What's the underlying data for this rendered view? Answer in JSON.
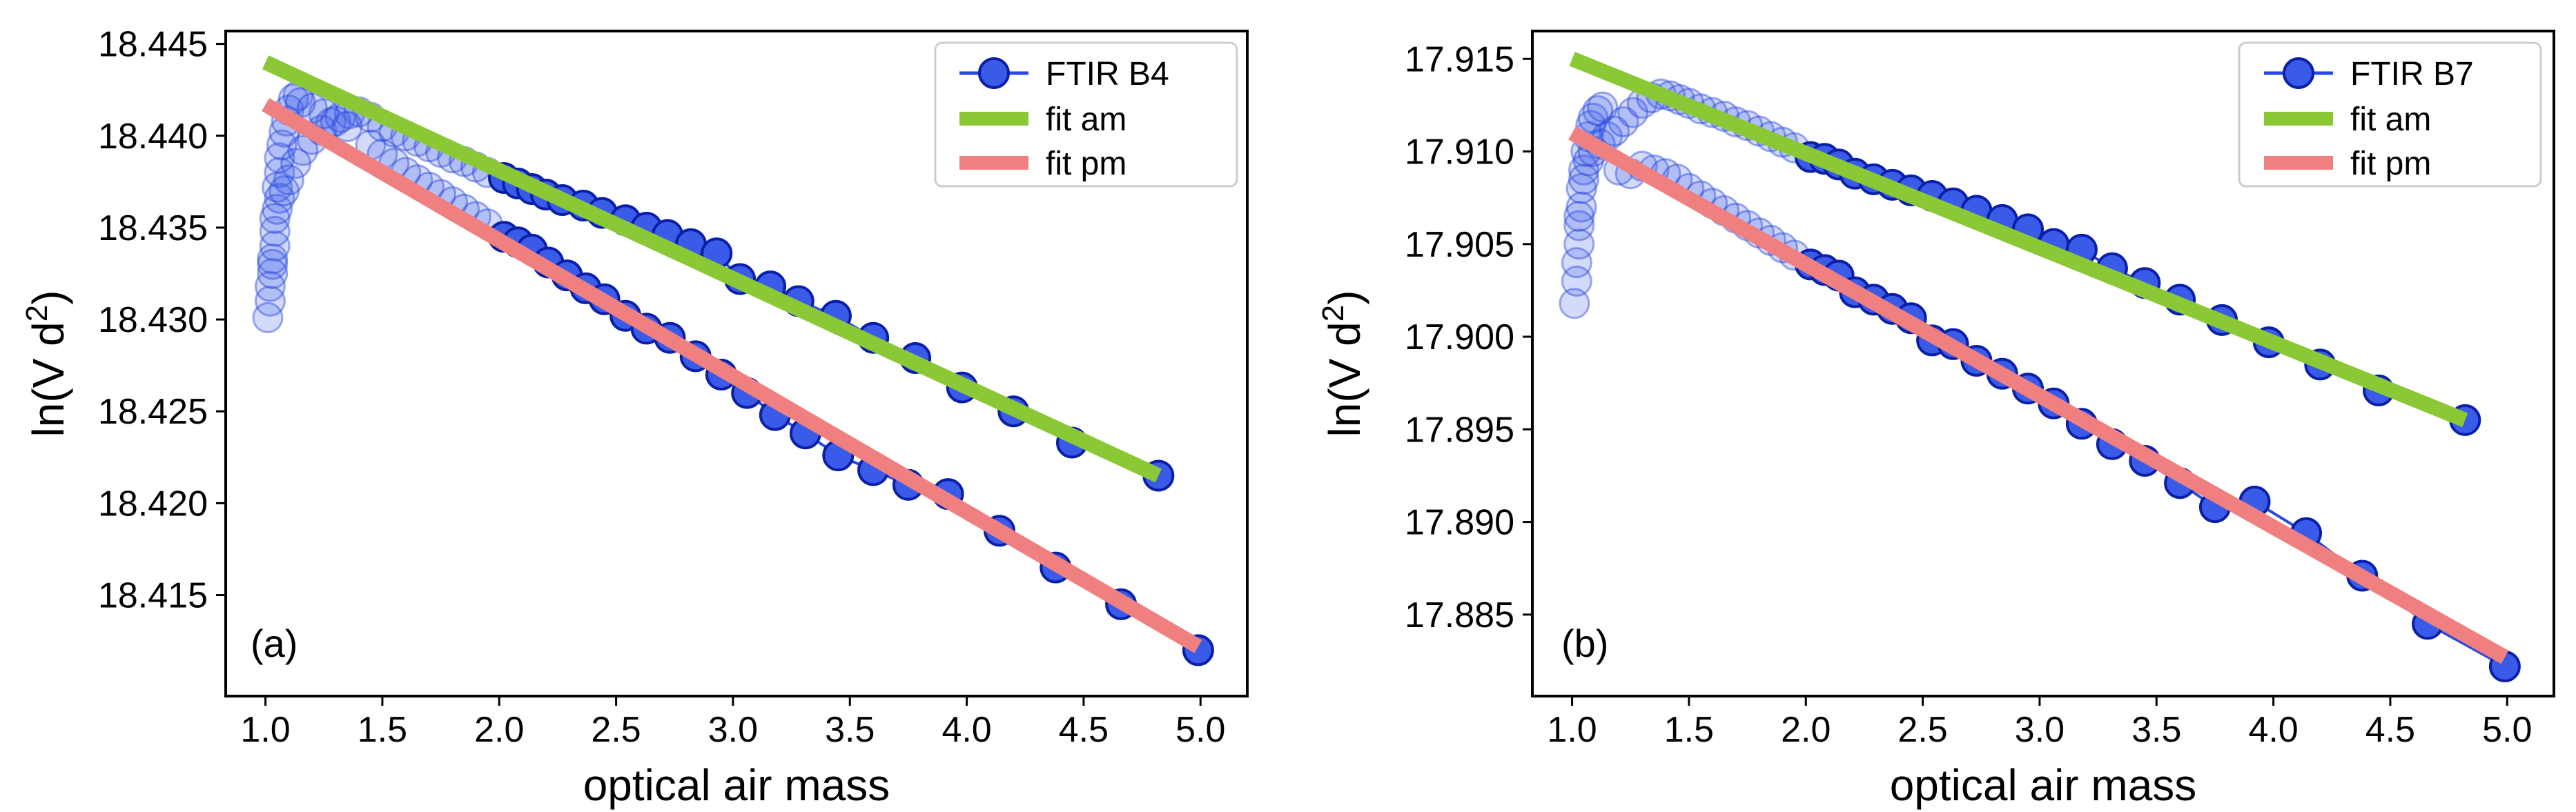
{
  "chart_data": [
    {
      "type": "scatter",
      "panel_label": "(a)",
      "xlabel": "optical air mass",
      "ylabel_main": "ln(V d",
      "ylabel_sup": "2",
      "ylabel_end": ")",
      "xlim": [
        0.83,
        5.2
      ],
      "ylim": [
        18.4095,
        18.4457
      ],
      "x_ticks": [
        1.0,
        1.5,
        2.0,
        2.5,
        3.0,
        3.5,
        4.0,
        4.5,
        5.0
      ],
      "x_tick_labels": [
        "1.0",
        "1.5",
        "2.0",
        "2.5",
        "3.0",
        "3.5",
        "4.0",
        "4.5",
        "5.0"
      ],
      "y_ticks": [
        18.415,
        18.42,
        18.425,
        18.43,
        18.435,
        18.44,
        18.445
      ],
      "y_tick_labels": [
        "18.415",
        "18.420",
        "18.425",
        "18.430",
        "18.435",
        "18.440",
        "18.445"
      ],
      "legend_position": "top-right",
      "series": [
        {
          "name": "FTIR B4",
          "kind": "data",
          "color": "#2848e0",
          "edge": "#0a1fa8",
          "low_airmass_points": [
            [
              1.01,
              18.4301
            ],
            [
              1.02,
              18.431
            ],
            [
              1.02,
              18.4318
            ],
            [
              1.03,
              18.4325
            ],
            [
              1.03,
              18.4333
            ],
            [
              1.04,
              18.434
            ],
            [
              1.04,
              18.4348
            ],
            [
              1.05,
              18.436
            ],
            [
              1.05,
              18.4372
            ],
            [
              1.06,
              18.438
            ],
            [
              1.06,
              18.4388
            ],
            [
              1.07,
              18.4395
            ],
            [
              1.08,
              18.4402
            ],
            [
              1.09,
              18.4408
            ],
            [
              1.1,
              18.4414
            ],
            [
              1.12,
              18.442
            ],
            [
              1.14,
              18.4422
            ],
            [
              1.03,
              18.433
            ],
            [
              1.04,
              18.4355
            ],
            [
              1.06,
              18.4366
            ],
            [
              1.08,
              18.437
            ],
            [
              1.1,
              18.4376
            ],
            [
              1.13,
              18.4385
            ],
            [
              1.16,
              18.4392
            ],
            [
              1.2,
              18.4398
            ],
            [
              1.24,
              18.4403
            ],
            [
              1.28,
              18.4407
            ],
            [
              1.32,
              18.441
            ],
            [
              1.36,
              18.4412
            ],
            [
              1.4,
              18.4413
            ],
            [
              1.15,
              18.4418
            ],
            [
              1.2,
              18.4415
            ],
            [
              1.25,
              18.4412
            ],
            [
              1.3,
              18.4408
            ],
            [
              1.35,
              18.4405
            ],
            [
              1.45,
              18.441
            ],
            [
              1.5,
              18.4405
            ],
            [
              1.55,
              18.4402
            ],
            [
              1.6,
              18.44
            ],
            [
              1.65,
              18.4397
            ],
            [
              1.7,
              18.4394
            ],
            [
              1.75,
              18.4391
            ],
            [
              1.8,
              18.4388
            ],
            [
              1.85,
              18.4386
            ],
            [
              1.9,
              18.4383
            ],
            [
              1.95,
              18.438
            ],
            [
              1.45,
              18.4395
            ],
            [
              1.5,
              18.439
            ],
            [
              1.55,
              18.4385
            ],
            [
              1.6,
              18.438
            ],
            [
              1.65,
              18.4376
            ],
            [
              1.7,
              18.4372
            ],
            [
              1.75,
              18.4368
            ],
            [
              1.8,
              18.4364
            ],
            [
              1.85,
              18.436
            ],
            [
              1.9,
              18.4356
            ],
            [
              1.95,
              18.4352
            ]
          ],
          "am_points": [
            [
              2.02,
              18.4377
            ],
            [
              2.08,
              18.4374
            ],
            [
              2.14,
              18.4371
            ],
            [
              2.2,
              18.4368
            ],
            [
              2.27,
              18.4365
            ],
            [
              2.36,
              18.4362
            ],
            [
              2.44,
              18.4358
            ],
            [
              2.54,
              18.4354
            ],
            [
              2.63,
              18.435
            ],
            [
              2.72,
              18.4346
            ],
            [
              2.82,
              18.4341
            ],
            [
              2.93,
              18.4336
            ],
            [
              3.03,
              18.4322
            ],
            [
              3.16,
              18.4318
            ],
            [
              3.28,
              18.431
            ],
            [
              3.44,
              18.4302
            ],
            [
              3.6,
              18.429
            ],
            [
              3.78,
              18.4279
            ],
            [
              3.98,
              18.4263
            ],
            [
              4.2,
              18.425
            ],
            [
              4.45,
              18.4233
            ],
            [
              4.82,
              18.4215
            ]
          ],
          "pm_points": [
            [
              2.02,
              18.4345
            ],
            [
              2.08,
              18.4342
            ],
            [
              2.14,
              18.4338
            ],
            [
              2.21,
              18.4331
            ],
            [
              2.29,
              18.4324
            ],
            [
              2.37,
              18.4317
            ],
            [
              2.45,
              18.4311
            ],
            [
              2.54,
              18.4302
            ],
            [
              2.63,
              18.4295
            ],
            [
              2.73,
              18.429
            ],
            [
              2.84,
              18.428
            ],
            [
              2.95,
              18.427
            ],
            [
              3.06,
              18.426
            ],
            [
              3.18,
              18.4248
            ],
            [
              3.31,
              18.4238
            ],
            [
              3.45,
              18.4226
            ],
            [
              3.6,
              18.4218
            ],
            [
              3.75,
              18.421
            ],
            [
              3.92,
              18.4205
            ],
            [
              4.14,
              18.4185
            ],
            [
              4.38,
              18.4165
            ],
            [
              4.66,
              18.4145
            ],
            [
              4.99,
              18.412
            ]
          ]
        },
        {
          "name": "fit am",
          "kind": "fit",
          "color": "#8ac935",
          "x": [
            1.0,
            4.82
          ],
          "y": [
            18.444,
            18.4215
          ]
        },
        {
          "name": "fit pm",
          "kind": "fit",
          "color": "#f08080",
          "x": [
            1.0,
            4.99
          ],
          "y": [
            18.4417,
            18.4122
          ]
        }
      ]
    },
    {
      "type": "scatter",
      "panel_label": "(b)",
      "xlabel": "optical air mass",
      "ylabel_main": "ln(V d",
      "ylabel_sup": "2",
      "ylabel_end": ")",
      "xlim": [
        0.83,
        5.2
      ],
      "ylim": [
        17.8806,
        17.9165
      ],
      "x_ticks": [
        1.0,
        1.5,
        2.0,
        2.5,
        3.0,
        3.5,
        4.0,
        4.5,
        5.0
      ],
      "x_tick_labels": [
        "1.0",
        "1.5",
        "2.0",
        "2.5",
        "3.0",
        "3.5",
        "4.0",
        "4.5",
        "5.0"
      ],
      "y_ticks": [
        17.885,
        17.89,
        17.895,
        17.9,
        17.905,
        17.91,
        17.915
      ],
      "y_tick_labels": [
        "17.885",
        "17.890",
        "17.895",
        "17.900",
        "17.905",
        "17.910",
        "17.915"
      ],
      "legend_position": "top-right",
      "series": [
        {
          "name": "FTIR B7",
          "kind": "data",
          "color": "#2848e0",
          "edge": "#0a1fa8",
          "low_airmass_points": [
            [
              1.01,
              17.9018
            ],
            [
              1.02,
              17.903
            ],
            [
              1.02,
              17.904
            ],
            [
              1.03,
              17.905
            ],
            [
              1.03,
              17.906
            ],
            [
              1.04,
              17.907
            ],
            [
              1.04,
              17.908
            ],
            [
              1.05,
              17.909
            ],
            [
              1.06,
              17.91
            ],
            [
              1.07,
              17.9108
            ],
            [
              1.08,
              17.9114
            ],
            [
              1.09,
              17.9118
            ],
            [
              1.11,
              17.9122
            ],
            [
              1.13,
              17.9124
            ],
            [
              1.03,
              17.9065
            ],
            [
              1.05,
              17.9085
            ],
            [
              1.07,
              17.9095
            ],
            [
              1.09,
              17.91
            ],
            [
              1.12,
              17.9104
            ],
            [
              1.15,
              17.9108
            ],
            [
              1.18,
              17.9111
            ],
            [
              1.22,
              17.9116
            ],
            [
              1.26,
              17.9121
            ],
            [
              1.3,
              17.9126
            ],
            [
              1.34,
              17.9129
            ],
            [
              1.38,
              17.9131
            ],
            [
              1.42,
              17.913
            ],
            [
              1.46,
              17.9128
            ],
            [
              1.5,
              17.9126
            ],
            [
              1.55,
              17.9123
            ],
            [
              1.6,
              17.9121
            ],
            [
              1.65,
              17.9119
            ],
            [
              1.7,
              17.9116
            ],
            [
              1.75,
              17.9114
            ],
            [
              1.8,
              17.9111
            ],
            [
              1.85,
              17.9108
            ],
            [
              1.9,
              17.9105
            ],
            [
              1.95,
              17.9102
            ],
            [
              1.2,
              17.909
            ],
            [
              1.25,
              17.9088
            ],
            [
              1.3,
              17.9092
            ],
            [
              1.35,
              17.909
            ],
            [
              1.4,
              17.9088
            ],
            [
              1.45,
              17.9085
            ],
            [
              1.5,
              17.908
            ],
            [
              1.55,
              17.9076
            ],
            [
              1.6,
              17.9072
            ],
            [
              1.65,
              17.9068
            ],
            [
              1.7,
              17.9064
            ],
            [
              1.75,
              17.906
            ],
            [
              1.8,
              17.9056
            ],
            [
              1.85,
              17.9052
            ],
            [
              1.9,
              17.9048
            ],
            [
              1.95,
              17.9044
            ]
          ],
          "am_points": [
            [
              2.02,
              17.9097
            ],
            [
              2.08,
              17.9096
            ],
            [
              2.14,
              17.9093
            ],
            [
              2.21,
              17.9088
            ],
            [
              2.29,
              17.9085
            ],
            [
              2.37,
              17.9082
            ],
            [
              2.45,
              17.9079
            ],
            [
              2.54,
              17.9076
            ],
            [
              2.63,
              17.9072
            ],
            [
              2.73,
              17.9068
            ],
            [
              2.84,
              17.9063
            ],
            [
              2.95,
              17.9058
            ],
            [
              3.06,
              17.905
            ],
            [
              3.18,
              17.9047
            ],
            [
              3.31,
              17.9037
            ],
            [
              3.45,
              17.9029
            ],
            [
              3.6,
              17.902
            ],
            [
              3.78,
              17.9009
            ],
            [
              3.98,
              17.8997
            ],
            [
              4.2,
              17.8985
            ],
            [
              4.45,
              17.8971
            ],
            [
              4.82,
              17.8955
            ]
          ],
          "pm_points": [
            [
              2.02,
              17.9039
            ],
            [
              2.08,
              17.9036
            ],
            [
              2.14,
              17.9033
            ],
            [
              2.21,
              17.9024
            ],
            [
              2.29,
              17.902
            ],
            [
              2.37,
              17.9015
            ],
            [
              2.45,
              17.901
            ],
            [
              2.54,
              17.8998
            ],
            [
              2.63,
              17.8996
            ],
            [
              2.73,
              17.8987
            ],
            [
              2.84,
              17.898
            ],
            [
              2.95,
              17.8972
            ],
            [
              3.06,
              17.8964
            ],
            [
              3.18,
              17.8953
            ],
            [
              3.31,
              17.8942
            ],
            [
              3.45,
              17.8933
            ],
            [
              3.6,
              17.8921
            ],
            [
              3.75,
              17.8908
            ],
            [
              3.92,
              17.8911
            ],
            [
              4.14,
              17.8894
            ],
            [
              4.38,
              17.8871
            ],
            [
              4.66,
              17.8845
            ],
            [
              4.99,
              17.8822
            ]
          ]
        },
        {
          "name": "fit am",
          "kind": "fit",
          "color": "#8ac935",
          "x": [
            1.0,
            4.82
          ],
          "y": [
            17.915,
            17.8955
          ]
        },
        {
          "name": "fit pm",
          "kind": "fit",
          "color": "#f08080",
          "x": [
            1.0,
            4.99
          ],
          "y": [
            17.911,
            17.8827
          ]
        }
      ]
    }
  ]
}
